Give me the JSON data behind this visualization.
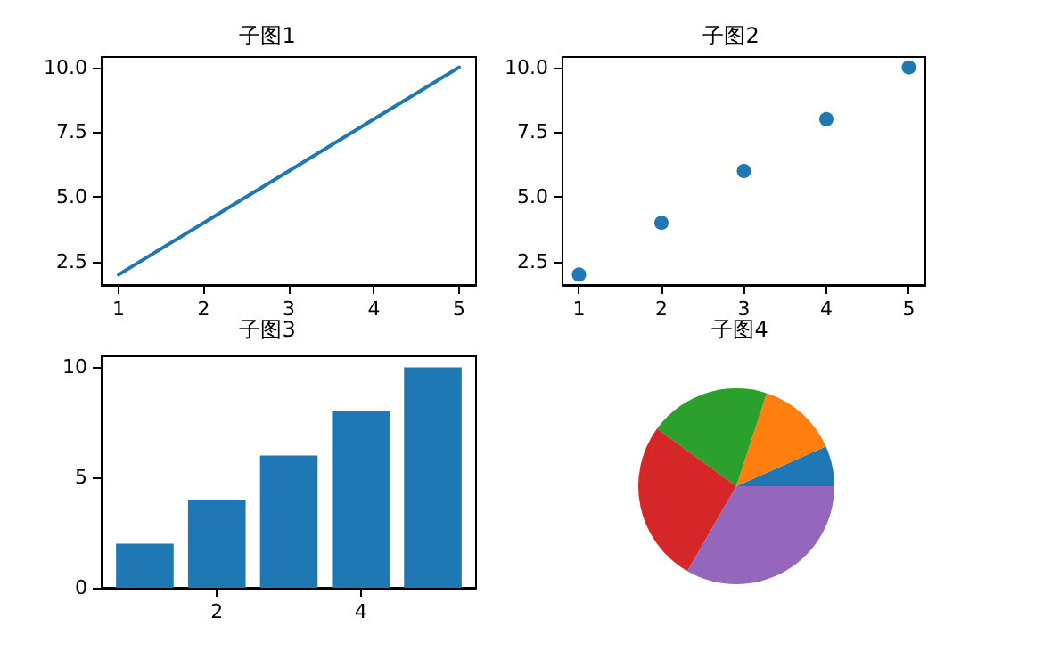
{
  "chart_data": [
    {
      "type": "line",
      "title": "子图1",
      "x": [
        1,
        2,
        3,
        4,
        5
      ],
      "series": [
        {
          "color": "#1f77b4",
          "values": [
            2,
            4,
            6,
            8,
            10
          ]
        }
      ],
      "xlim": [
        0.8,
        5.2
      ],
      "xticks": [
        1,
        2,
        3,
        4,
        5
      ],
      "ylim": [
        1.6,
        10.4
      ],
      "yticks": [
        {
          "value": 2.5,
          "label": "2.5"
        },
        {
          "value": 5,
          "label": "5.0"
        },
        {
          "value": 7.5,
          "label": "7.5"
        },
        {
          "value": 10,
          "label": "10.0"
        }
      ],
      "grid": false,
      "marker": "none",
      "line_style": "solid"
    },
    {
      "type": "scatter",
      "title": "子图2",
      "x": [
        1,
        2,
        3,
        4,
        5
      ],
      "series": [
        {
          "color": "#1f77b4",
          "values": [
            2,
            4,
            6,
            8,
            10
          ]
        }
      ],
      "xlim": [
        0.8,
        5.2
      ],
      "xticks": [
        1,
        2,
        3,
        4,
        5
      ],
      "ylim": [
        1.6,
        10.4
      ],
      "yticks": [
        {
          "value": 2.5,
          "label": "2.5"
        },
        {
          "value": 5,
          "label": "5.0"
        },
        {
          "value": 7.5,
          "label": "7.5"
        },
        {
          "value": 10,
          "label": "10.0"
        }
      ],
      "grid": false,
      "marker": "circle"
    },
    {
      "type": "bar",
      "title": "子图3",
      "x": [
        1,
        2,
        3,
        4,
        5
      ],
      "series": [
        {
          "color": "#1f77b4",
          "values": [
            2,
            4,
            6,
            8,
            10
          ]
        }
      ],
      "xlim": [
        0.4,
        5.6
      ],
      "xticks": [
        2,
        4
      ],
      "ylim": [
        0,
        10.5
      ],
      "yticks": [
        0,
        5,
        10
      ],
      "grid": false
    },
    {
      "type": "pie",
      "title": "子图4",
      "categories": [
        null,
        null,
        null,
        null,
        null
      ],
      "values": [
        6.67,
        13.33,
        20,
        26.67,
        33.33
      ],
      "colors": [
        "#1f77b4",
        "#ff7f0e",
        "#2ca02c",
        "#d62728",
        "#9467bd"
      ]
    }
  ]
}
